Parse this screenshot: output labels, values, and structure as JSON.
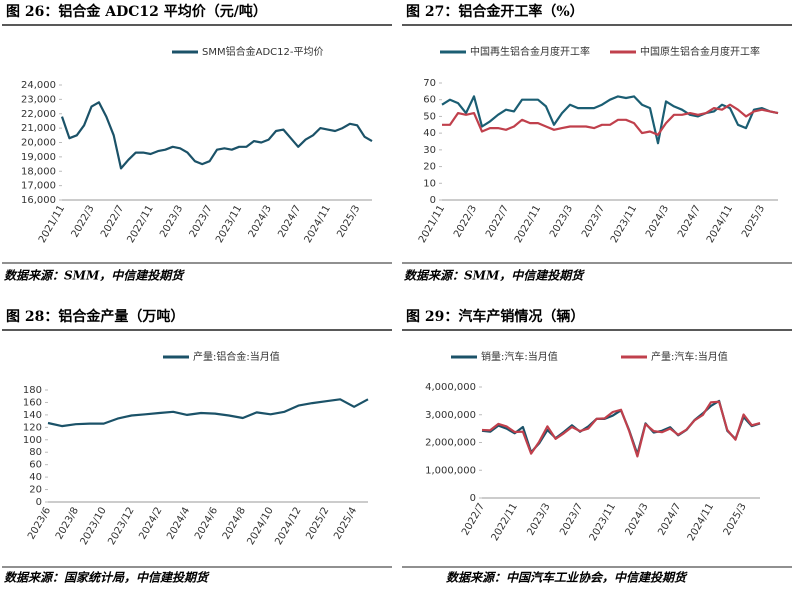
{
  "chart_data": [
    {
      "type": "line",
      "title": "图 26：铝合金 ADC12 平均价（元/吨）",
      "source": "数据来源：SMM，中信建投期货",
      "categories": [
        "2021/11",
        null,
        null,
        null,
        "2022/3",
        null,
        null,
        null,
        "2022/7",
        null,
        null,
        null,
        "2022/11",
        null,
        null,
        null,
        "2023/3",
        null,
        null,
        null,
        "2023/7",
        null,
        null,
        null,
        "2023/11",
        null,
        null,
        null,
        "2024/3",
        null,
        null,
        null,
        "2024/7",
        null,
        null,
        null,
        "2024/11",
        null,
        null,
        null,
        "2025/3",
        null,
        null
      ],
      "series": [
        {
          "name": "SMM铝合金ADC12-平均价",
          "color": "#1b5268",
          "values": [
            21800,
            20300,
            20500,
            21200,
            22500,
            22800,
            21800,
            20500,
            18200,
            18800,
            19300,
            19300,
            19200,
            19400,
            19500,
            19700,
            19600,
            19300,
            18700,
            18500,
            18700,
            19500,
            19600,
            19500,
            19700,
            19700,
            20100,
            20000,
            20200,
            20800,
            20900,
            20300,
            19700,
            20200,
            20500,
            21000,
            20900,
            20800,
            21000,
            21300,
            21200,
            20400,
            20100
          ]
        }
      ],
      "ylim": [
        16000,
        24000
      ],
      "yticks": [
        {
          "value": 16000,
          "label": "16,000"
        },
        {
          "value": 17000,
          "label": "17,000"
        },
        {
          "value": 18000,
          "label": "18,000"
        },
        {
          "value": 19000,
          "label": "19,000"
        },
        {
          "value": 20000,
          "label": "20,000"
        },
        {
          "value": 21000,
          "label": "21,000"
        },
        {
          "value": 22000,
          "label": "22,000"
        },
        {
          "value": 23000,
          "label": "23,000"
        },
        {
          "value": 24000,
          "label": "24,000"
        }
      ],
      "grid": false,
      "legend": "top"
    },
    {
      "type": "line",
      "title": "图 27：铝合金开工率（%）",
      "source": "数据来源：SMM，中信建投期货",
      "categories": [
        "2021/11",
        null,
        null,
        null,
        "2022/3",
        null,
        null,
        null,
        "2022/7",
        null,
        null,
        null,
        "2022/11",
        null,
        null,
        null,
        "2023/3",
        null,
        null,
        null,
        "2023/7",
        null,
        null,
        null,
        "2023/11",
        null,
        null,
        null,
        "2024/3",
        null,
        null,
        null,
        "2024/7",
        null,
        null,
        null,
        "2024/11",
        null,
        null,
        null,
        "2025/3",
        null,
        null
      ],
      "series": [
        {
          "name": "中国再生铝合金月度开工率",
          "color": "#1b5e73",
          "values": [
            57,
            60,
            58,
            52,
            62,
            44,
            47,
            51,
            54,
            53,
            60,
            60,
            60,
            56,
            45,
            52,
            57,
            55,
            55,
            55,
            57,
            60,
            62,
            61,
            62,
            57,
            55,
            34,
            59,
            56,
            54,
            51,
            50,
            52,
            53,
            57,
            55,
            45,
            43,
            54,
            55,
            53,
            52
          ]
        },
        {
          "name": "中国原生铝合金月度开工率",
          "color": "#c0404c",
          "values": [
            45,
            45,
            52,
            51,
            52,
            41,
            43,
            43,
            42,
            44,
            48,
            46,
            46,
            44,
            42,
            43,
            44,
            44,
            44,
            43,
            45,
            45,
            48,
            48,
            46,
            40,
            41,
            39,
            46,
            51,
            51,
            52,
            51,
            52,
            55,
            54,
            57,
            54,
            50,
            53,
            54,
            53,
            52
          ]
        }
      ],
      "ylim": [
        0,
        70
      ],
      "yticks": [
        0,
        10,
        20,
        30,
        40,
        50,
        60,
        70
      ],
      "grid": false,
      "legend": "top"
    },
    {
      "type": "line",
      "title": "图 28：铝合金产量（万吨）",
      "source": "数据来源：国家统计局，中信建投期货",
      "categories": [
        "2023/6",
        null,
        "2023/8",
        null,
        "2023/10",
        null,
        "2023/12",
        null,
        "2024/2",
        null,
        "2024/4",
        null,
        "2024/6",
        null,
        "2024/8",
        null,
        "2024/10",
        null,
        "2024/12",
        null,
        "2025/2",
        null,
        "2025/4",
        null
      ],
      "series": [
        {
          "name": "产量:铝合金:当月值",
          "color": "#1b5268",
          "values": [
            127,
            122,
            125,
            126,
            126,
            134,
            139,
            141,
            143,
            145,
            140,
            143,
            142,
            139,
            135,
            144,
            141,
            145,
            155,
            159,
            162,
            165,
            153,
            165
          ]
        }
      ],
      "ylim": [
        0,
        180
      ],
      "yticks": [
        0,
        20,
        40,
        60,
        80,
        100,
        120,
        140,
        160,
        180
      ],
      "grid": false,
      "legend": "top"
    },
    {
      "type": "line",
      "title": "图 29：汽车产销情况（辆）",
      "source": "数据来源：中国汽车工业协会，中信建投期货",
      "categories": [
        "2022/7",
        null,
        null,
        null,
        "2022/11",
        null,
        null,
        null,
        "2023/3",
        null,
        null,
        null,
        "2023/7",
        null,
        null,
        null,
        "2023/11",
        null,
        null,
        null,
        "2024/3",
        null,
        null,
        null,
        "2024/7",
        null,
        null,
        null,
        "2024/11",
        null,
        null,
        null,
        "2025/3",
        null,
        null
      ],
      "series": [
        {
          "name": "销量:汽车:当月值",
          "color": "#1b5268",
          "values": [
            2420000,
            2390000,
            2610000,
            2500000,
            2330000,
            2560000,
            1650000,
            1970000,
            2450000,
            2160000,
            2380000,
            2620000,
            2390000,
            2580000,
            2850000,
            2850000,
            2970000,
            3160000,
            2440000,
            1580000,
            2690000,
            2360000,
            2420000,
            2550000,
            2260000,
            2450000,
            2810000,
            3050000,
            3320000,
            3500000,
            2420000,
            2130000,
            2920000,
            2590000,
            2690000
          ]
        },
        {
          "name": "产量:汽车:当月值",
          "color": "#c0404c",
          "values": [
            2450000,
            2440000,
            2670000,
            2580000,
            2380000,
            2390000,
            1600000,
            2030000,
            2580000,
            2130000,
            2330000,
            2560000,
            2410000,
            2500000,
            2850000,
            2870000,
            3100000,
            3180000,
            2410000,
            1500000,
            2660000,
            2410000,
            2370000,
            2500000,
            2280000,
            2460000,
            2800000,
            2990000,
            3450000,
            3470000,
            2450000,
            2100000,
            3010000,
            2620000,
            2700000
          ]
        }
      ],
      "ylim": [
        0,
        4000000
      ],
      "yticks": [
        0,
        {
          "value": 1000000,
          "label": "1,000,000"
        },
        {
          "value": 2000000,
          "label": "2,000,000"
        },
        {
          "value": 3000000,
          "label": "3,000,000"
        },
        {
          "value": 4000000,
          "label": "4,000,000"
        }
      ],
      "grid": false,
      "legend": "top"
    }
  ]
}
